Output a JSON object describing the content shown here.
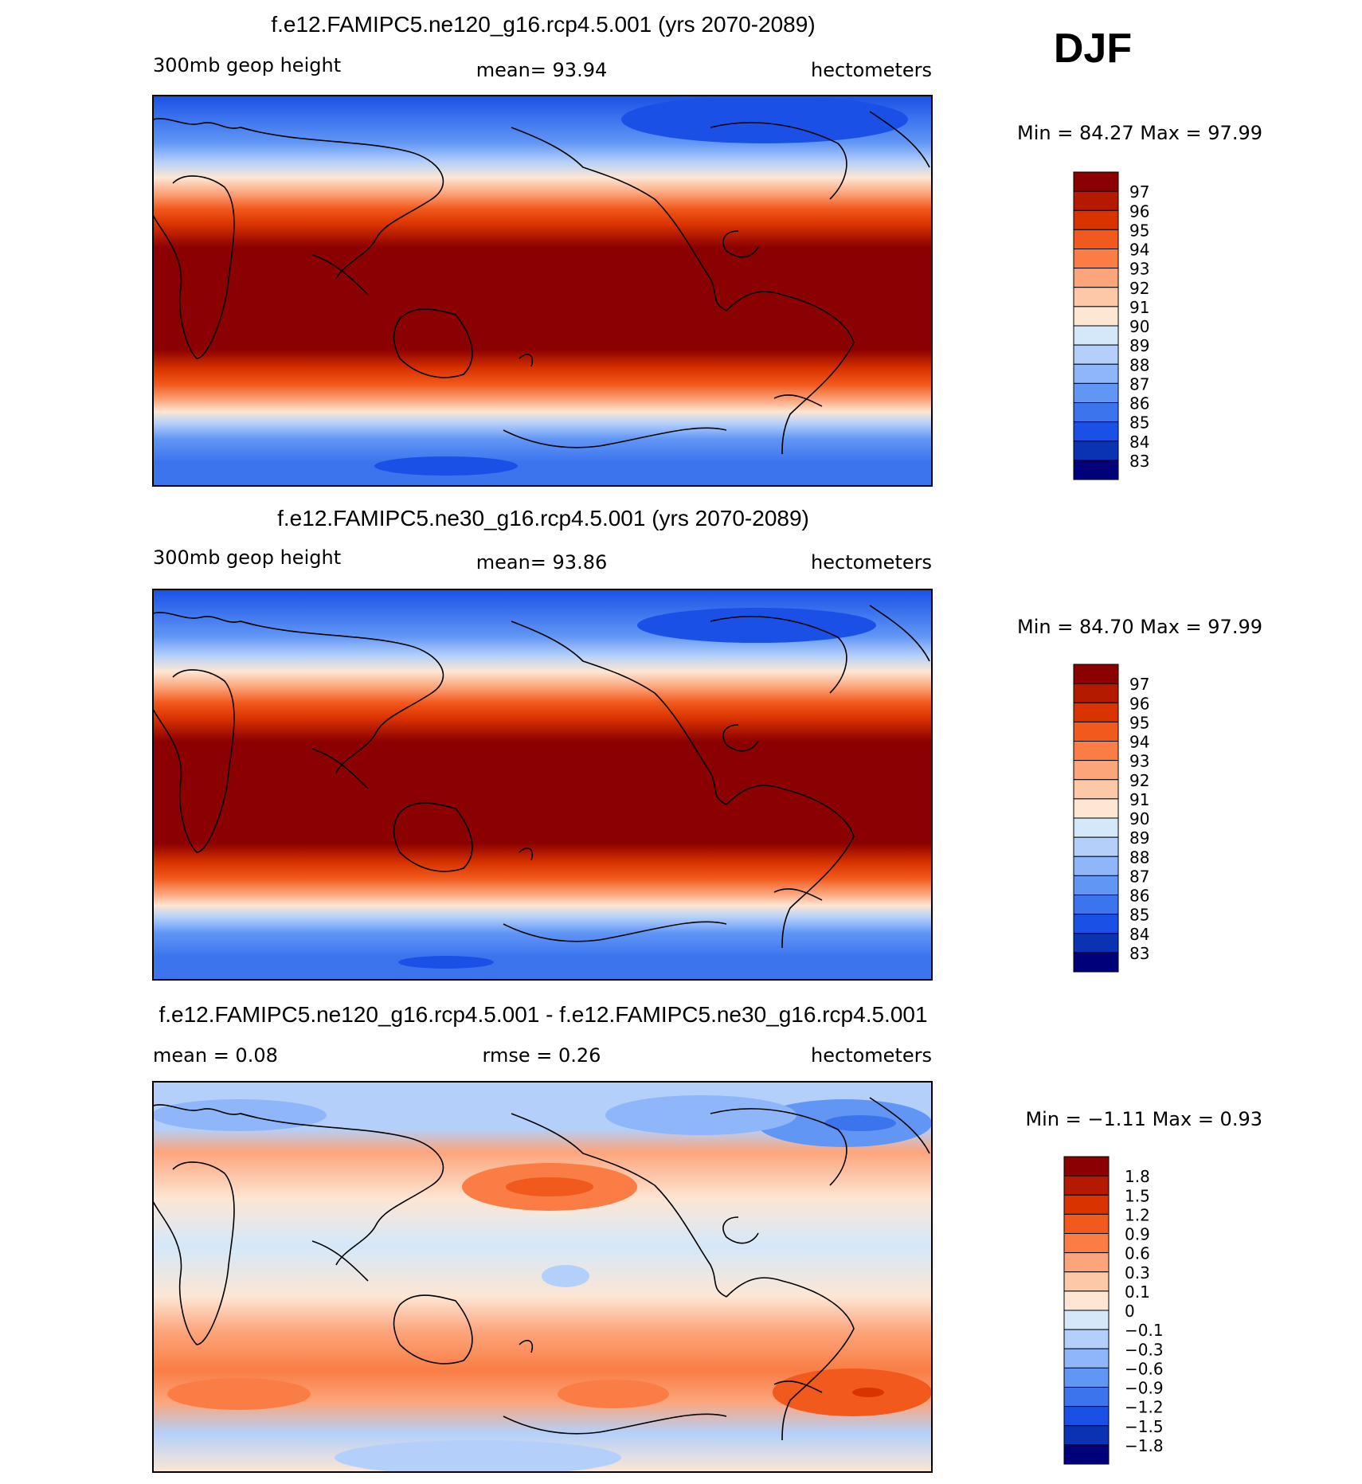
{
  "season": "DJF",
  "panels": [
    {
      "title": "f.e12.FAMIPC5.ne120_g16.rcp4.5.001 (yrs 2070-2089)",
      "left_label": "300mb geop height",
      "center_label": "mean=   93.94",
      "right_label": "hectometers",
      "minmax": "Min =   84.27 Max =   97.99"
    },
    {
      "title": "f.e12.FAMIPC5.ne30_g16.rcp4.5.001 (yrs 2070-2089)",
      "left_label": "300mb geop height",
      "center_label": "mean=   93.86",
      "right_label": "hectometers",
      "minmax": "Min =   84.70 Max =   97.99"
    },
    {
      "title": "f.e12.FAMIPC5.ne120_g16.rcp4.5.001 - f.e12.FAMIPC5.ne30_g16.rcp4.5.001",
      "left_label": "mean =    0.08",
      "center_label": "rmse =    0.26",
      "right_label": "hectometers",
      "minmax": "Min =  −1.11 Max =    0.93"
    }
  ],
  "legends": {
    "abs": {
      "labels": [
        "97",
        "96",
        "95",
        "94",
        "93",
        "92",
        "91",
        "90",
        "89",
        "88",
        "87",
        "86",
        "85",
        "84",
        "83"
      ],
      "colors": [
        "#8b0000",
        "#b31a00",
        "#d93300",
        "#f2591c",
        "#fa7d45",
        "#fca57b",
        "#fdc8a8",
        "#fde6d4",
        "#d4e8fa",
        "#b4d0fa",
        "#8eb6f8",
        "#6196f5",
        "#3c74ee",
        "#1a50e6",
        "#0a33b4",
        "#00007a"
      ]
    },
    "diff": {
      "labels": [
        "1.8",
        "1.5",
        "1.2",
        "0.9",
        "0.6",
        "0.3",
        "0.1",
        "0",
        "−0.1",
        "−0.3",
        "−0.6",
        "−0.9",
        "−1.2",
        "−1.5",
        "−1.8"
      ],
      "colors": [
        "#8b0000",
        "#b31a00",
        "#d93300",
        "#f2591c",
        "#fa7d45",
        "#fca57b",
        "#fdc8a8",
        "#fde6d4",
        "#d4e8fa",
        "#b4d0fa",
        "#8eb6f8",
        "#6196f5",
        "#3c74ee",
        "#1a50e6",
        "#0a33b4",
        "#00007a"
      ]
    }
  }
}
